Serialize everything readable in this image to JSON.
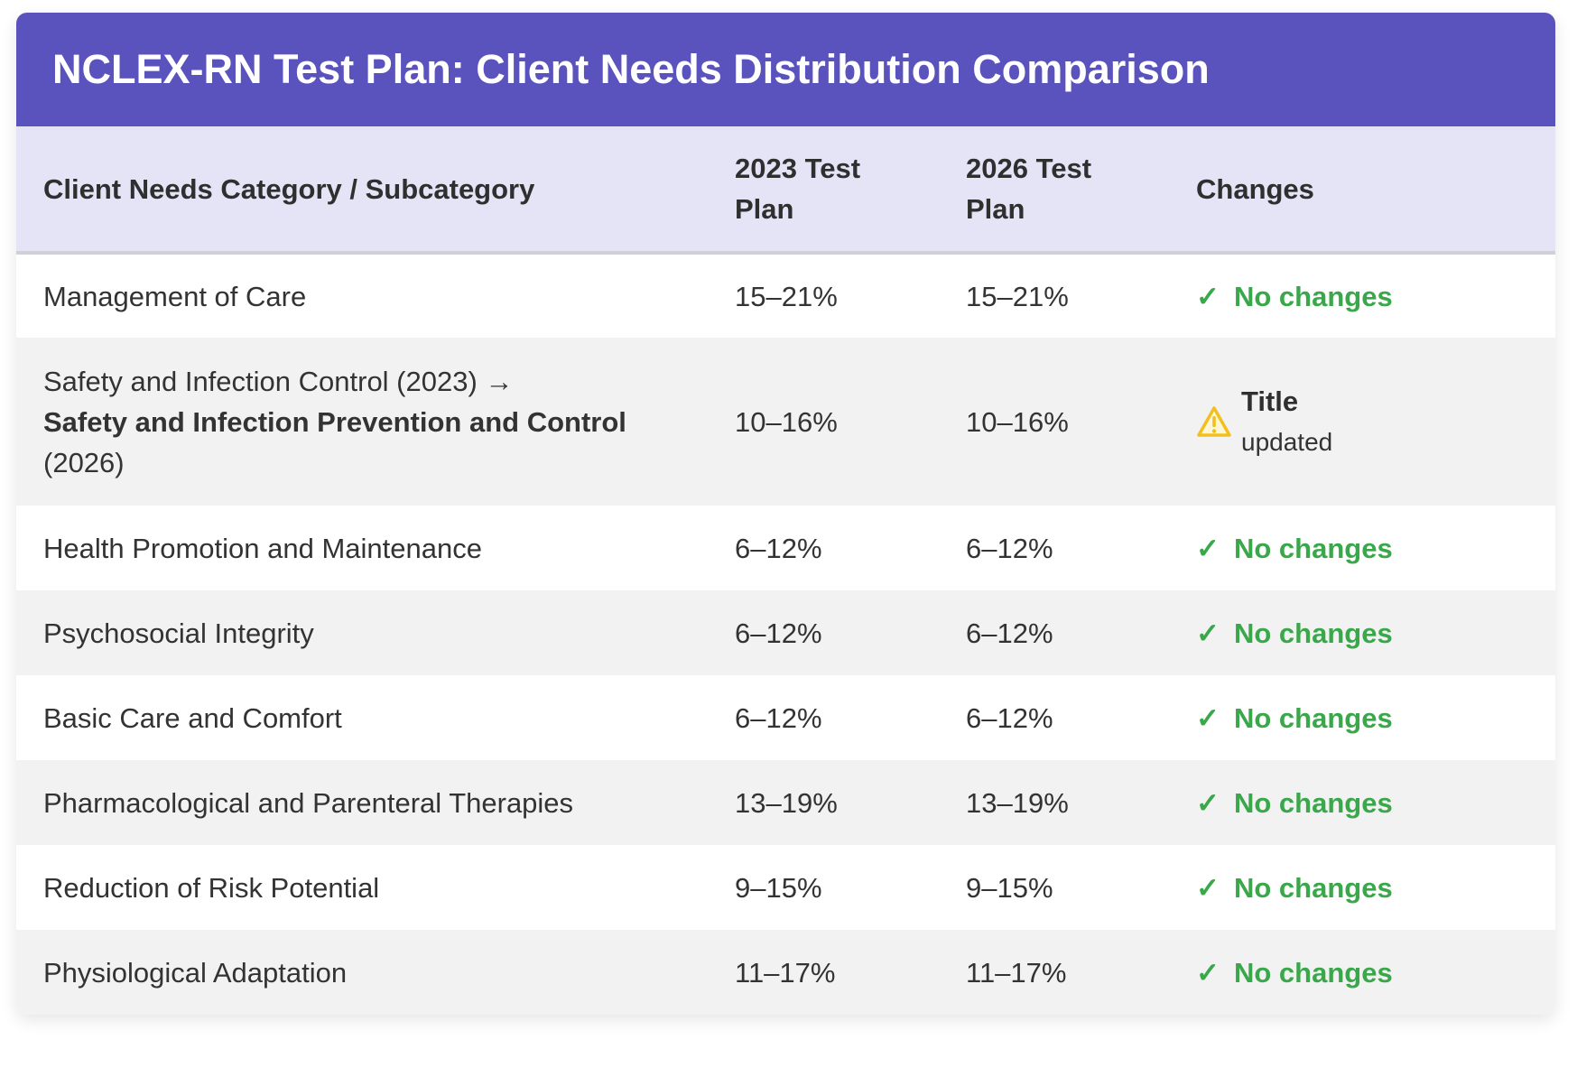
{
  "title": "NCLEX-RN Test Plan: Client Needs Distribution Comparison",
  "headers": {
    "category": "Client Needs Category / Subcategory",
    "plan2023": "2023 Test Plan",
    "plan2026": "2026 Test Plan",
    "changes": "Changes"
  },
  "rows": [
    {
      "category": "Management of Care",
      "plan2023": "15–21%",
      "plan2026": "15–21%",
      "change": "No changes"
    },
    {
      "category_old": "Safety and Infection Control (2023) →",
      "category_new": "Safety and Infection Prevention and Control",
      "category_year": "(2026)",
      "plan2023": "10–16%",
      "plan2026": "10–16%",
      "change_strong": "Title",
      "change_sub": "updated"
    },
    {
      "category": "Health Promotion and Maintenance",
      "plan2023": "6–12%",
      "plan2026": "6–12%",
      "change": "No changes"
    },
    {
      "category": "Psychosocial Integrity",
      "plan2023": "6–12%",
      "plan2026": "6–12%",
      "change": "No changes"
    },
    {
      "category": "Basic Care and Comfort",
      "plan2023": "6–12%",
      "plan2026": "6–12%",
      "change": "No changes"
    },
    {
      "category": "Pharmacological and Parenteral Therapies",
      "plan2023": "13–19%",
      "plan2026": "13–19%",
      "change": "No changes"
    },
    {
      "category": "Reduction of Risk Potential",
      "plan2023": "9–15%",
      "plan2026": "9–15%",
      "change": "No changes"
    },
    {
      "category": "Physiological Adaptation",
      "plan2023": "11–17%",
      "plan2026": "11–17%",
      "change": "No changes"
    }
  ],
  "icons": {
    "check": "check-icon",
    "warning": "warning-icon"
  },
  "colors": {
    "header_bg": "#5b53bd",
    "subheader_bg": "#e5e3f6",
    "ok_green": "#3aa84a",
    "warning_yellow": "#f2c01e"
  }
}
